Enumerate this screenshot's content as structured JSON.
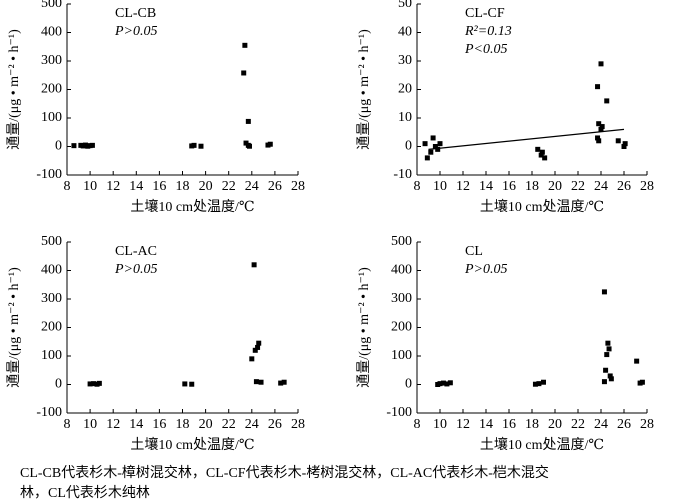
{
  "chart_data": [
    {
      "type": "scatter",
      "title": "CL-CB",
      "stats": [
        "P>0.05"
      ],
      "x_label": "土壤10 cm处温度/℃",
      "y_label": "通量/(μg • m⁻² • h⁻¹)",
      "x": [
        8.6,
        9.2,
        9.4,
        9.6,
        9.8,
        10.0,
        10.2,
        18.8,
        19.0,
        19.6,
        23.4,
        23.3,
        23.7,
        23.5,
        23.7,
        23.8,
        25.4,
        25.6
      ],
      "values": [
        3,
        4,
        2,
        5,
        1,
        3,
        4,
        2,
        4,
        1,
        355,
        258,
        88,
        12,
        4,
        1,
        5,
        8
      ],
      "color": "#000000",
      "xlim": [
        8,
        28
      ],
      "ylim": [
        -100,
        500
      ],
      "xticks": [
        8,
        10,
        12,
        14,
        16,
        18,
        20,
        22,
        24,
        26,
        28
      ],
      "yticks": [
        -100,
        0,
        100,
        200,
        300,
        400,
        500
      ]
    },
    {
      "type": "scatter",
      "title": "CL-CF",
      "stats": [
        "R²=0.13",
        "P<0.05"
      ],
      "x_label": "土壤10 cm处温度/℃",
      "y_label": "通量/(μg • m⁻² • h⁻¹)",
      "x": [
        8.7,
        8.9,
        9.2,
        9.4,
        9.6,
        9.8,
        10.0,
        18.5,
        18.8,
        19.1,
        18.9,
        23.7,
        24.0,
        24.5,
        23.8,
        24.0,
        23.7,
        23.8,
        24.1,
        25.5,
        26.0,
        26.1
      ],
      "values": [
        1,
        -4,
        -2,
        3,
        0,
        -1,
        1,
        -1,
        -3,
        -4,
        -2,
        21,
        29,
        16,
        8,
        6,
        3,
        2,
        7,
        2,
        0,
        1
      ],
      "fit_line": {
        "x": [
          9,
          26
        ],
        "y": [
          -1,
          6
        ]
      },
      "color": "#000000",
      "xlim": [
        8,
        28
      ],
      "ylim": [
        -10,
        50
      ],
      "xticks": [
        8,
        10,
        12,
        14,
        16,
        18,
        20,
        22,
        24,
        26,
        28
      ],
      "yticks": [
        -10,
        0,
        10,
        20,
        30,
        40,
        50
      ]
    },
    {
      "type": "scatter",
      "title": "CL-AC",
      "stats": [
        "P>0.05"
      ],
      "x_label": "土壤10 cm处温度/℃",
      "y_label": "通量/(μg • m⁻² • h⁻¹)",
      "x": [
        10.0,
        10.3,
        10.6,
        10.8,
        18.2,
        18.8,
        24.2,
        24.0,
        24.3,
        24.5,
        24.6,
        24.4,
        24.8,
        26.5,
        26.8
      ],
      "values": [
        2,
        3,
        1,
        4,
        2,
        1,
        420,
        90,
        120,
        130,
        145,
        10,
        8,
        5,
        8
      ],
      "color": "#000000",
      "xlim": [
        8,
        28
      ],
      "ylim": [
        -100,
        500
      ],
      "xticks": [
        8,
        10,
        12,
        14,
        16,
        18,
        20,
        22,
        24,
        26,
        28
      ],
      "yticks": [
        -100,
        0,
        100,
        200,
        300,
        400,
        500
      ]
    },
    {
      "type": "scatter",
      "title": "CL",
      "stats": [
        "P>0.05"
      ],
      "x_label": "土壤10 cm处温度/℃",
      "y_label": "通量/(μg • m⁻² • h⁻¹)",
      "x": [
        9.8,
        10.0,
        10.3,
        10.6,
        10.9,
        18.3,
        18.6,
        19.0,
        24.3,
        24.6,
        24.7,
        24.5,
        24.4,
        24.8,
        24.9,
        24.3,
        27.1,
        27.4,
        27.6
      ],
      "values": [
        0,
        3,
        5,
        2,
        6,
        1,
        3,
        8,
        325,
        145,
        125,
        105,
        50,
        30,
        20,
        10,
        82,
        5,
        8
      ],
      "color": "#000000",
      "xlim": [
        8,
        28
      ],
      "ylim": [
        -100,
        500
      ],
      "xticks": [
        8,
        10,
        12,
        14,
        16,
        18,
        20,
        22,
        24,
        26,
        28
      ],
      "yticks": [
        -100,
        0,
        100,
        200,
        300,
        400,
        500
      ]
    }
  ],
  "caption": [
    "CL-CB代表杉木-樟树混交林，CL-CF代表杉木-栲树混交林，CL-AC代表杉木-桤木混交",
    "林，CL代表杉木纯林"
  ]
}
